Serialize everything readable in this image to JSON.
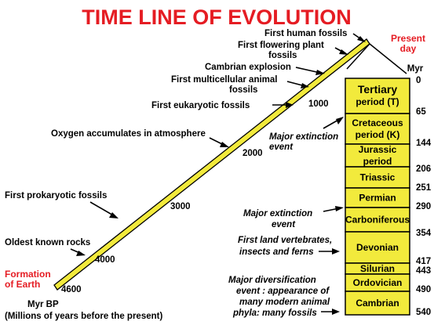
{
  "title": "TIME LINE OF EVOLUTION",
  "present_day": [
    "Present",
    "day"
  ],
  "formation_of_earth": [
    "Formation",
    "of Earth"
  ],
  "myr_label": "Myr",
  "axis_label": "Myr BP",
  "axis_note": "(Millions of years before the present)",
  "timeline_ticks": [
    "1000",
    "2000",
    "3000",
    "4000",
    "4600"
  ],
  "events": [
    {
      "lines": [
        "First human fossils"
      ]
    },
    {
      "lines": [
        "First flowering plant",
        "fossils"
      ]
    },
    {
      "lines": [
        "Cambrian explosion"
      ]
    },
    {
      "lines": [
        "First multicellular animal",
        "fossils"
      ]
    },
    {
      "lines": [
        "First  eukaryotic fossils"
      ]
    },
    {
      "lines": [
        "Oxygen accumulates in atmosphere"
      ]
    },
    {
      "lines": [
        "First prokaryotic fossils"
      ]
    },
    {
      "lines": [
        "Oldest known rocks"
      ]
    }
  ],
  "periods": [
    {
      "lines": [
        "Tertiary",
        "period (T)"
      ],
      "start_myr": 0,
      "end_myr": 65
    },
    {
      "lines": [
        "Cretaceous",
        "period (K)"
      ],
      "start_myr": 65,
      "end_myr": 144
    },
    {
      "lines": [
        "Jurassic",
        "period"
      ],
      "start_myr": 144,
      "end_myr": 206
    },
    {
      "lines": [
        "Triassic"
      ],
      "start_myr": 206,
      "end_myr": 251
    },
    {
      "lines": [
        "Permian"
      ],
      "start_myr": 251,
      "end_myr": 290
    },
    {
      "lines": [
        "Carboniferous"
      ],
      "start_myr": 290,
      "end_myr": 354
    },
    {
      "lines": [
        "Devonian"
      ],
      "start_myr": 354,
      "end_myr": 417
    },
    {
      "lines": [
        "Silurian"
      ],
      "start_myr": 417,
      "end_myr": 443
    },
    {
      "lines": [
        "Ordovician"
      ],
      "start_myr": 443,
      "end_myr": 490
    },
    {
      "lines": [
        "Cambrian"
      ],
      "start_myr": 490,
      "end_myr": 540
    }
  ],
  "boundary_ticks": [
    "0",
    "65",
    "144",
    "206",
    "251",
    "290",
    "354",
    "417",
    "443",
    "490",
    "540"
  ],
  "annotations": [
    {
      "lines": [
        "Major extinction",
        "event"
      ]
    },
    {
      "lines": [
        "Major extinction",
        "event"
      ]
    },
    {
      "lines": [
        "First land vertebrates,",
        "insects and ferns"
      ]
    },
    {
      "lines": [
        "Major diversification",
        "event :  appearance of",
        "many modern animal",
        "phyla: many fossils"
      ]
    }
  ],
  "colors": {
    "title": "#e51c23",
    "bar_fill": "#f2ea3c",
    "timeline_fill": "#f2ea3c",
    "outline": "#000000"
  }
}
